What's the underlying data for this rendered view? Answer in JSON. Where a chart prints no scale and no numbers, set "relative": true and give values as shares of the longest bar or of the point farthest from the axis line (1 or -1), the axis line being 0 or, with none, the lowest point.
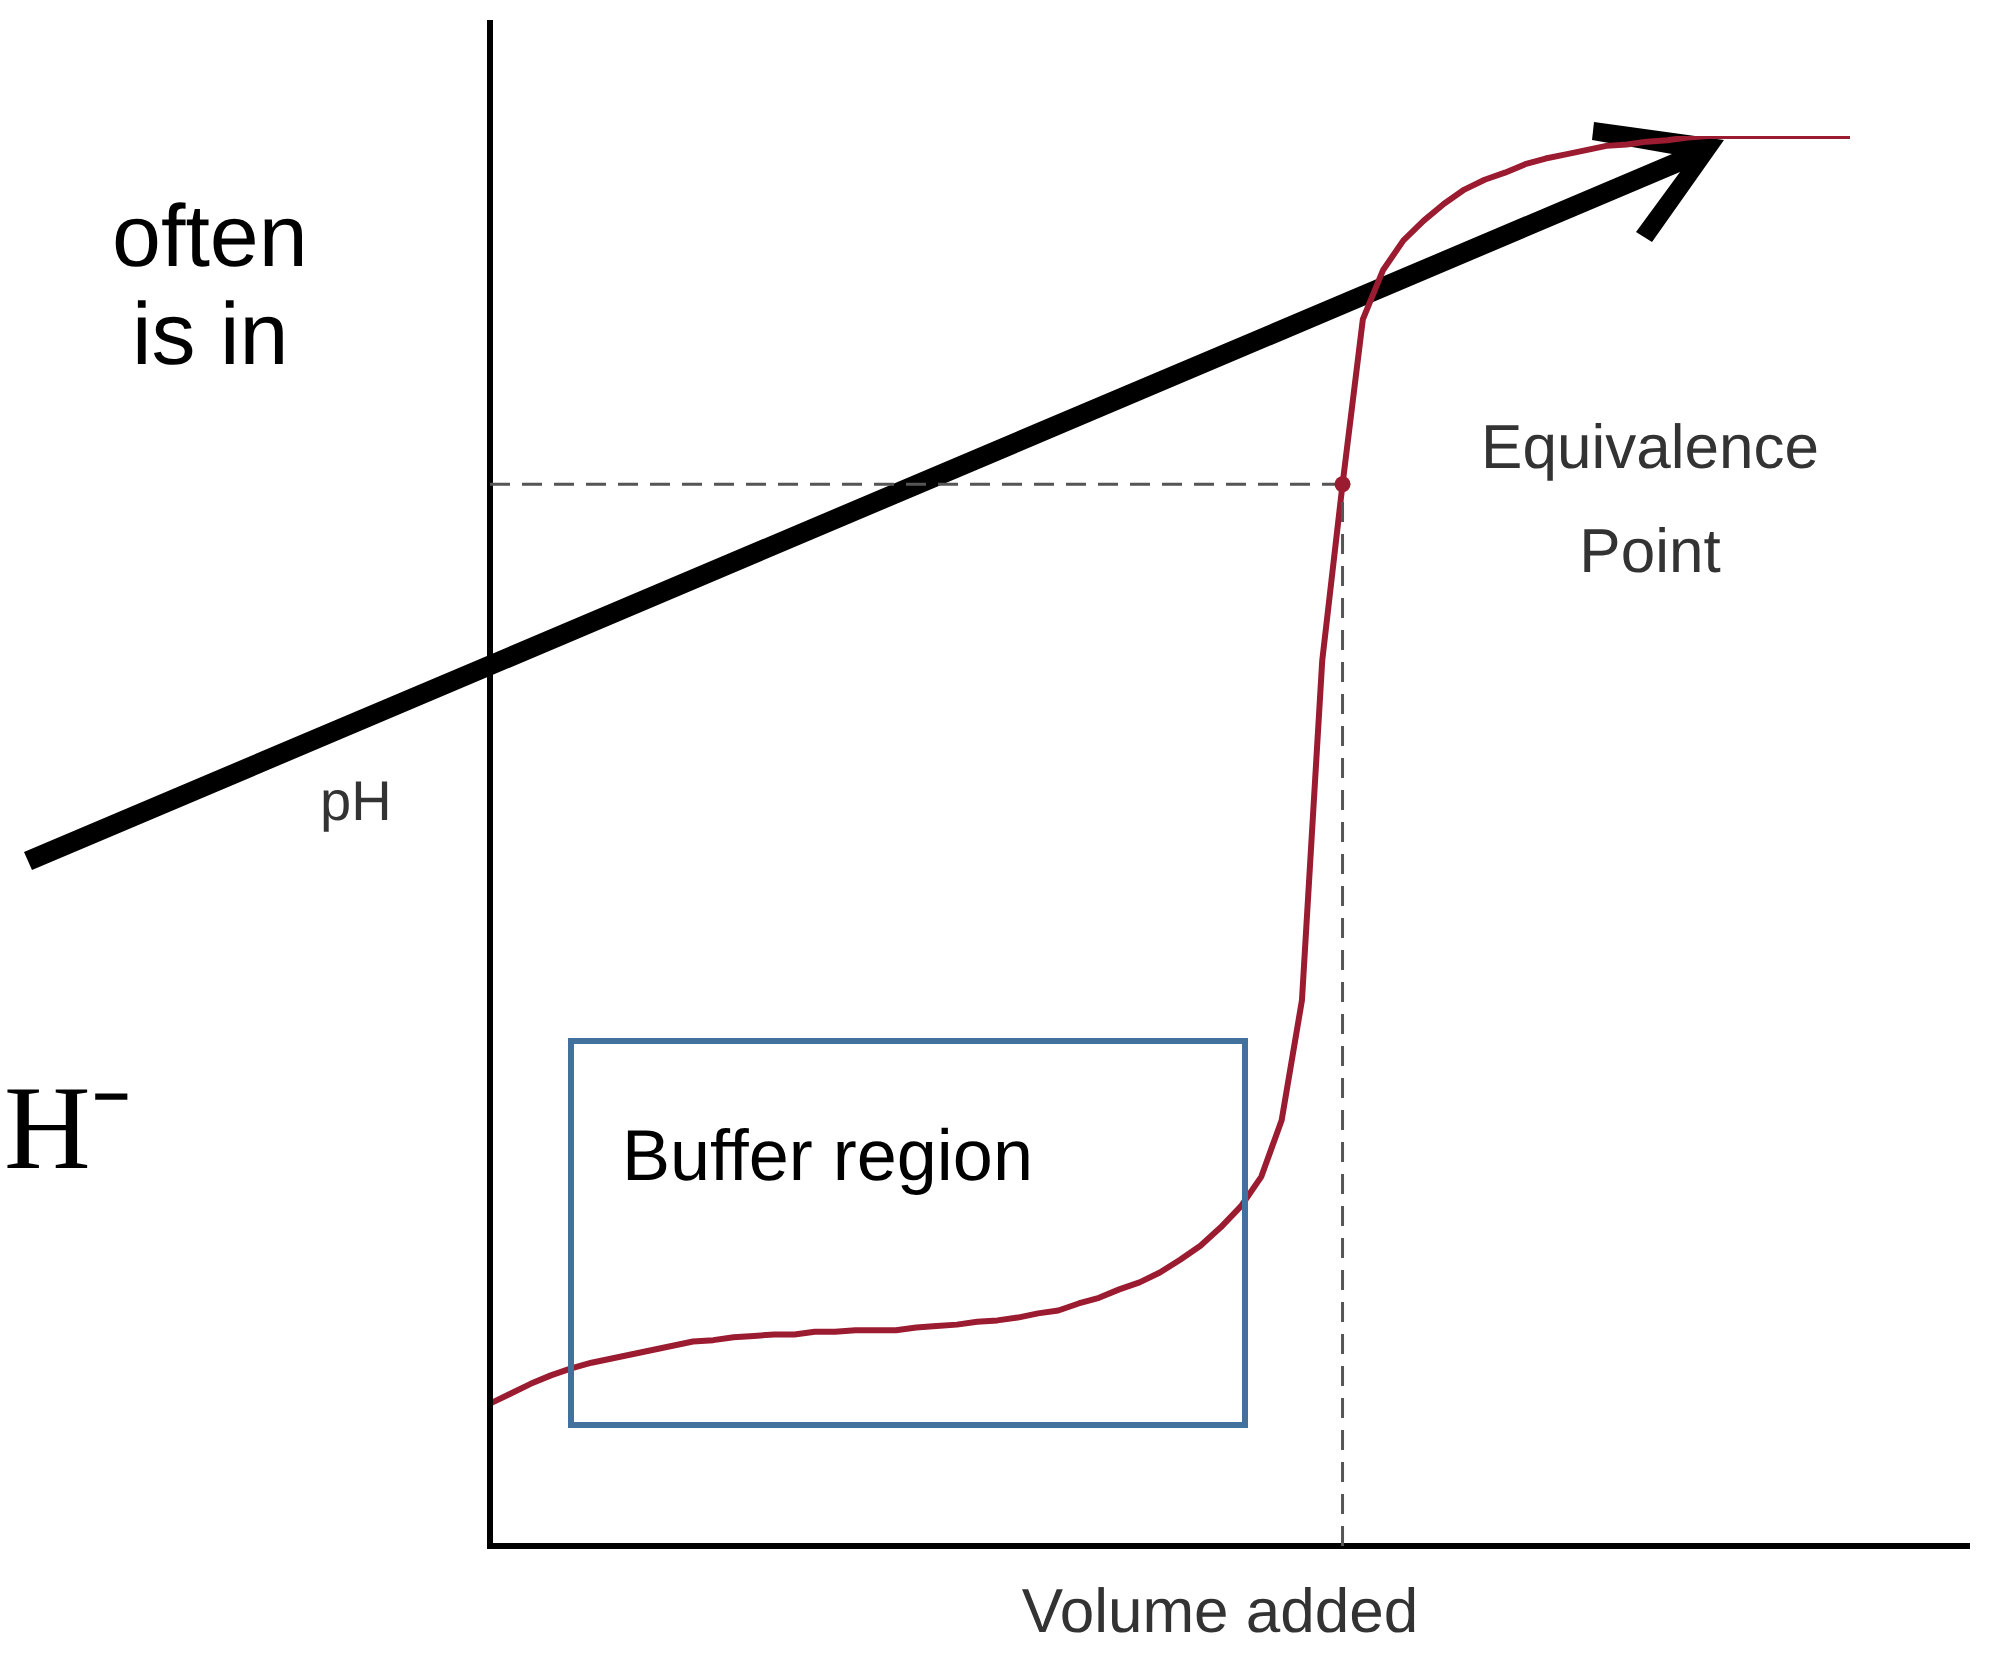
{
  "chart_data": {
    "type": "line",
    "relative": true,
    "xlabel": "Volume added",
    "ylabel": "pH",
    "categories": [
      null,
      null,
      null,
      null,
      null,
      null,
      null,
      null,
      null,
      null,
      null,
      null,
      null,
      null,
      null,
      null,
      null,
      null,
      null,
      null,
      null,
      null,
      null,
      null,
      null,
      null,
      null,
      null,
      null,
      null,
      null,
      null,
      null,
      null,
      null,
      null,
      null,
      null,
      null,
      null,
      null,
      null,
      null,
      null,
      null,
      null,
      null,
      null,
      null,
      null,
      null,
      null,
      null,
      null,
      null,
      null,
      null,
      null,
      null,
      null,
      null,
      null,
      null,
      null,
      null,
      null,
      null,
      null
    ],
    "series": [
      {
        "color": "#9b1b30",
        "values": [
          0.101,
          0.108,
          0.115,
          0.121,
          0.126,
          0.13,
          0.133,
          0.136,
          0.139,
          0.142,
          0.145,
          0.146,
          0.148,
          0.149,
          0.15,
          0.15,
          0.152,
          0.152,
          0.153,
          0.153,
          0.153,
          0.155,
          0.156,
          0.157,
          0.159,
          0.16,
          0.162,
          0.165,
          0.167,
          0.172,
          0.176,
          0.182,
          0.187,
          0.194,
          0.203,
          0.213,
          0.226,
          0.241,
          0.262,
          0.302,
          0.387,
          0.628,
          0.753,
          0.87,
          0.905,
          0.926,
          0.94,
          0.952,
          0.962,
          0.969,
          0.974,
          0.98,
          0.984,
          0.987,
          0.99,
          0.993,
          0.994,
          0.996,
          0.997,
          0.999,
          1,
          1,
          1,
          1,
          1,
          1,
          1,
          1
        ]
      }
    ],
    "ref_lines": [
      {
        "axis": "y",
        "value": 0.753,
        "line_style": "dashed",
        "color": "#555555"
      }
    ],
    "annotations": [
      "often",
      "is in",
      "H⁻",
      "Equivalence Point",
      "Buffer region"
    ],
    "marker": "none",
    "line_style": "solid",
    "legend": false
  }
}
